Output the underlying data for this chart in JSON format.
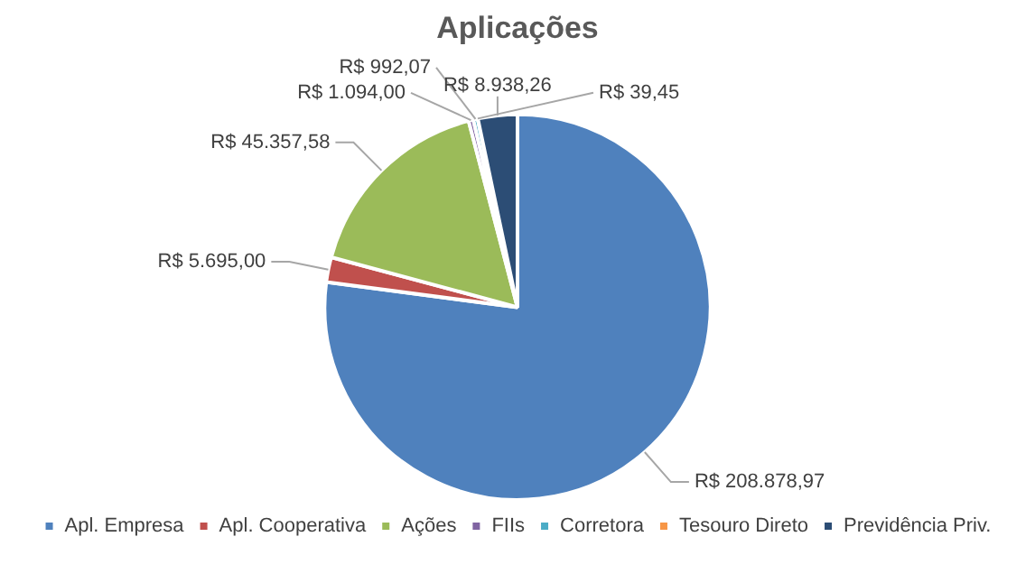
{
  "chart_data": {
    "type": "pie",
    "title": "Aplicações",
    "categories": [
      "Apl. Empresa",
      "Apl. Cooperativa",
      "Ações",
      "FIIs",
      "Corretora",
      "Tesouro Direto",
      "Previdência Priv."
    ],
    "values": [
      208878.97,
      5695.0,
      45357.58,
      1094.0,
      992.07,
      39.45,
      8938.26
    ],
    "colors": [
      "#4f81bd",
      "#c0504d",
      "#9bbb59",
      "#8064a2",
      "#4bacc6",
      "#f79646",
      "#2c4d75"
    ],
    "value_labels": [
      "R$ 208.878,97",
      "R$ 5.695,00",
      "R$ 45.357,58",
      "R$ 1.094,00",
      "R$ 992,07",
      "R$ 39,45",
      "R$ 8.938,26"
    ],
    "legend": "bottom"
  }
}
